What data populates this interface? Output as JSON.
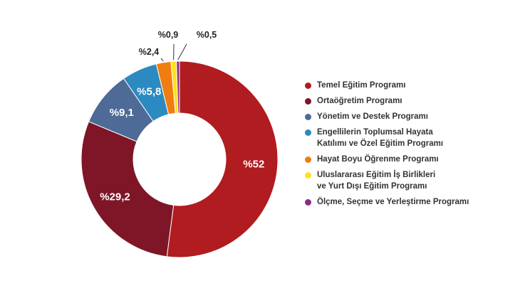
{
  "chart_data": {
    "type": "pie",
    "subtype": "donut",
    "title": "",
    "legend_position": "right",
    "slices": [
      {
        "name": "Temel Eğitim Programı",
        "value": 52,
        "label": "%52",
        "color": "#B01C1F"
      },
      {
        "name": "Ortaöğretim Programı",
        "value": 29.2,
        "label": "%29,2",
        "color": "#7E1628"
      },
      {
        "name": "Yönetim ve Destek Programı",
        "value": 9.1,
        "label": "%9,1",
        "color": "#4E6A96"
      },
      {
        "name": "Engellilerin Toplumsal Hayata\nKatılımı ve Özel Eğitim Programı",
        "value": 5.8,
        "label": "%5,8",
        "color": "#2B8AC0"
      },
      {
        "name": "Hayat Boyu Öğrenme Programı",
        "value": 2.4,
        "label": "%2,4",
        "color": "#F07D12"
      },
      {
        "name": "Uluslararası Eğitim İş Birlikleri\nve Yurt Dışı Eğitim Programı",
        "value": 0.9,
        "label": "%0,9",
        "color": "#FFE11A"
      },
      {
        "name": "Ölçme, Seçme ve Yerleştirme Programı",
        "value": 0.5,
        "label": "%0,5",
        "color": "#8E2B86"
      }
    ]
  }
}
